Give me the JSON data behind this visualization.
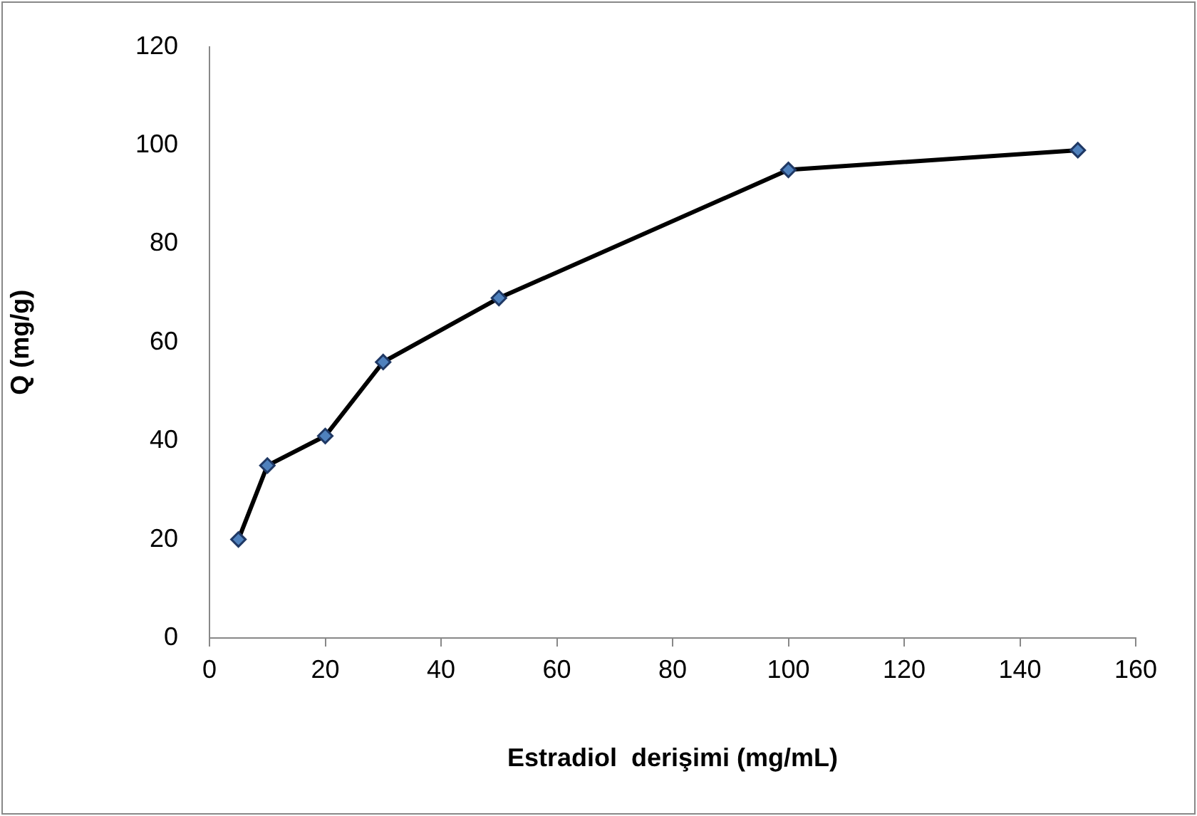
{
  "chart_data": {
    "type": "line",
    "xlabel": "Estradiol  derişimi (mg/mL)",
    "ylabel": "Q (mg/g)",
    "x": [
      5,
      10,
      20,
      30,
      50,
      100,
      150
    ],
    "series": [
      {
        "color": "#000000",
        "values": [
          20,
          35,
          41,
          56,
          69,
          95,
          99
        ]
      }
    ],
    "xlim": [
      0,
      160
    ],
    "xticks": [
      0,
      20,
      40,
      60,
      80,
      100,
      120,
      140,
      160
    ],
    "ylim": [
      0,
      120
    ],
    "yticks": [
      0,
      20,
      40,
      60,
      80,
      100,
      120
    ],
    "grid": false,
    "legend": false,
    "marker": "diamond",
    "line_style": "solid"
  }
}
